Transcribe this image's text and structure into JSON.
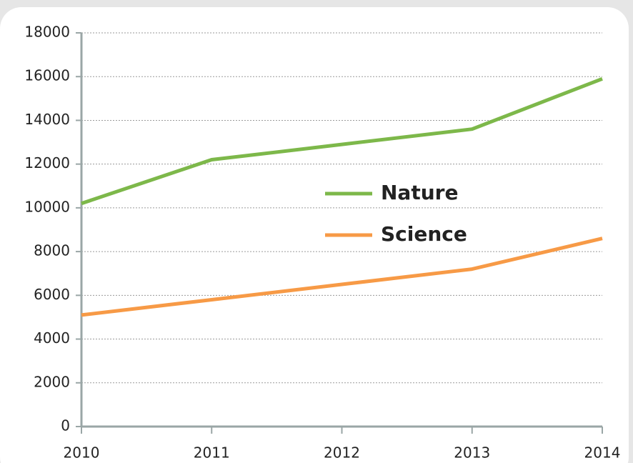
{
  "chart_data": {
    "type": "line",
    "x": [
      2010,
      2011,
      2012,
      2013,
      2014
    ],
    "xlim": [
      2010,
      2014
    ],
    "xticks": [
      2010,
      2011,
      2012,
      2013,
      2014
    ],
    "ylim": [
      0,
      18000
    ],
    "yticks": [
      0,
      2000,
      4000,
      6000,
      8000,
      10000,
      12000,
      14000,
      16000,
      18000
    ],
    "grid": true,
    "legend": "center",
    "series": [
      {
        "name": "Nature",
        "color": "#7db84a",
        "values": [
          10200,
          12200,
          12900,
          13600,
          15900
        ]
      },
      {
        "name": "Science",
        "color": "#f79a46",
        "values": [
          5100,
          5800,
          6500,
          7200,
          8600
        ]
      }
    ]
  }
}
